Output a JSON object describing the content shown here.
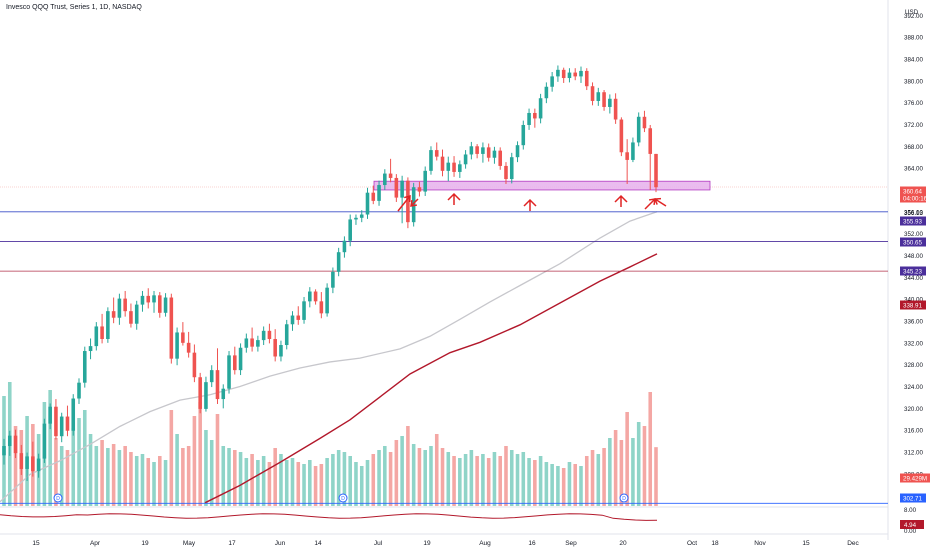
{
  "title": "Invesco QQQ Trust, Series 1, 1D, NASDAQ",
  "colors": {
    "up": "#26a69a",
    "down": "#ef5350",
    "vol_up": "#8fd4c8",
    "vol_down": "#f4a7a4",
    "ma_gray": "#c7c7cc",
    "ma_red": "#b2182b",
    "zone_fill": "#e6b0ec",
    "zone_stroke": "#b23bc2",
    "hline_blue": "#3b4ec7",
    "hline_purple": "#4b2f9b",
    "hline_maroon": "#b0304a",
    "arrow": "#e02424",
    "grid_divider": "#e0e3eb"
  },
  "chart_data": {
    "type": "candlestick",
    "title": "Invesco QQQ Trust, Series 1, 1D, NASDAQ",
    "currency": "USD",
    "y_range": [
      302,
      398
    ],
    "y_ticks": [
      "392.00",
      "388.00",
      "384.00",
      "380.00",
      "376.00",
      "372.00",
      "368.00",
      "364.00",
      "360.00",
      "356.00",
      "352.00",
      "348.00",
      "344.00",
      "340.00",
      "336.00",
      "332.00",
      "328.00",
      "324.00",
      "320.00",
      "316.00",
      "312.00",
      "308.00",
      "304.00",
      "396.00"
    ],
    "x_labels": [
      "15",
      "Apr",
      "19",
      "May",
      "17",
      "Jun",
      "14",
      "Jul",
      "19",
      "Aug",
      "16",
      "Sep",
      "20",
      "Oct",
      "18",
      "Nov",
      "15",
      "Dec"
    ],
    "price_badges": [
      {
        "value": "360.64",
        "sub": "04:00:16",
        "color": "#ef5350"
      },
      {
        "value": "356.13",
        "color": "none"
      },
      {
        "value": "355.93",
        "color": "#4b2f9b"
      },
      {
        "value": "350.65",
        "color": "#4b2f9b"
      },
      {
        "value": "345.23",
        "color": "#4b2f9b"
      },
      {
        "value": "338.91",
        "color": "#b2182b"
      },
      {
        "value": "29.429M",
        "color": "#ef5350"
      },
      {
        "value": "302.71",
        "color": "#2962ff"
      }
    ],
    "horizontal_levels": [
      356.1,
      350.65,
      345.23,
      302.71
    ],
    "support_zone": [
      360.1,
      361.7
    ],
    "candles": [
      [
        311.5,
        314.5,
        309.8,
        313.2
      ],
      [
        313.2,
        316.0,
        311.4,
        315.1
      ],
      [
        315.1,
        316.2,
        311.0,
        311.9
      ],
      [
        311.9,
        313.4,
        307.9,
        309.0
      ],
      [
        309.0,
        312.0,
        306.8,
        311.3
      ],
      [
        311.3,
        314.0,
        307.6,
        308.6
      ],
      [
        308.6,
        311.8,
        307.4,
        310.9
      ],
      [
        310.9,
        318.2,
        310.1,
        317.3
      ],
      [
        317.3,
        321.0,
        316.3,
        320.4
      ],
      [
        320.4,
        321.8,
        314.4,
        315.0
      ],
      [
        315.0,
        319.3,
        313.9,
        318.6
      ],
      [
        318.6,
        320.6,
        315.0,
        316.0
      ],
      [
        316.0,
        322.7,
        315.1,
        321.9
      ],
      [
        321.9,
        325.6,
        320.9,
        324.8
      ],
      [
        324.8,
        331.4,
        323.9,
        330.6
      ],
      [
        330.6,
        332.9,
        329.1,
        331.5
      ],
      [
        331.5,
        335.9,
        330.7,
        335.1
      ],
      [
        335.1,
        337.4,
        332.0,
        332.8
      ],
      [
        332.8,
        338.6,
        332.1,
        337.9
      ],
      [
        337.9,
        340.4,
        335.7,
        336.7
      ],
      [
        336.7,
        341.1,
        335.4,
        340.2
      ],
      [
        340.2,
        341.6,
        336.9,
        337.9
      ],
      [
        337.9,
        339.3,
        334.9,
        335.6
      ],
      [
        335.6,
        339.8,
        334.5,
        339.1
      ],
      [
        339.1,
        341.6,
        337.8,
        340.7
      ],
      [
        340.7,
        342.1,
        338.4,
        339.5
      ],
      [
        339.5,
        341.6,
        337.6,
        340.8
      ],
      [
        340.8,
        341.4,
        336.7,
        337.6
      ],
      [
        337.6,
        341.2,
        336.9,
        340.4
      ],
      [
        340.4,
        341.1,
        328.3,
        329.2
      ],
      [
        329.2,
        334.9,
        328.0,
        334.0
      ],
      [
        334.0,
        335.9,
        331.6,
        332.1
      ],
      [
        332.1,
        334.1,
        329.4,
        330.3
      ],
      [
        330.3,
        331.8,
        324.9,
        325.8
      ],
      [
        325.8,
        326.6,
        319.2,
        320.0
      ],
      [
        320.0,
        325.9,
        319.5,
        324.9
      ],
      [
        324.9,
        328.0,
        324.0,
        327.1
      ],
      [
        327.1,
        331.1,
        320.9,
        321.8
      ],
      [
        321.8,
        324.5,
        320.1,
        323.7
      ],
      [
        323.7,
        330.6,
        322.8,
        329.8
      ],
      [
        329.8,
        331.4,
        326.3,
        327.1
      ],
      [
        327.1,
        332.0,
        326.2,
        331.2
      ],
      [
        331.2,
        333.8,
        330.3,
        332.9
      ],
      [
        332.9,
        334.9,
        330.5,
        331.4
      ],
      [
        331.4,
        333.4,
        330.5,
        332.6
      ],
      [
        332.6,
        335.1,
        331.7,
        334.3
      ],
      [
        334.3,
        335.6,
        332.0,
        332.8
      ],
      [
        332.8,
        334.6,
        328.7,
        329.6
      ],
      [
        329.6,
        332.5,
        328.7,
        331.7
      ],
      [
        331.7,
        336.3,
        330.9,
        335.5
      ],
      [
        335.5,
        337.9,
        334.3,
        337.1
      ],
      [
        337.1,
        338.8,
        335.4,
        336.3
      ],
      [
        336.3,
        340.5,
        335.6,
        339.7
      ],
      [
        339.7,
        342.3,
        338.6,
        341.5
      ],
      [
        341.5,
        341.9,
        339.1,
        339.7
      ],
      [
        339.7,
        341.4,
        336.6,
        337.5
      ],
      [
        337.5,
        343.0,
        336.9,
        342.2
      ],
      [
        342.2,
        345.9,
        341.2,
        345.1
      ],
      [
        345.1,
        349.5,
        344.3,
        348.7
      ],
      [
        348.7,
        351.6,
        347.7,
        350.8
      ],
      [
        350.8,
        355.6,
        349.8,
        354.7
      ],
      [
        354.7,
        355.6,
        353.7,
        355.0
      ],
      [
        355.0,
        356.4,
        354.2,
        355.6
      ],
      [
        355.6,
        360.5,
        354.8,
        359.6
      ],
      [
        359.6,
        360.9,
        357.5,
        358.1
      ],
      [
        358.1,
        361.8,
        357.2,
        361.0
      ],
      [
        361.0,
        363.9,
        360.1,
        363.1
      ],
      [
        363.1,
        365.8,
        361.5,
        362.3
      ],
      [
        362.3,
        363.0,
        357.9,
        358.7
      ],
      [
        358.7,
        362.7,
        354.0,
        361.8
      ],
      [
        361.8,
        362.4,
        353.1,
        354.2
      ],
      [
        354.2,
        361.4,
        353.4,
        360.6
      ],
      [
        360.6,
        361.6,
        358.9,
        359.8
      ],
      [
        359.8,
        364.4,
        359.0,
        363.6
      ],
      [
        363.6,
        368.1,
        362.9,
        367.4
      ],
      [
        367.4,
        368.8,
        365.5,
        366.2
      ],
      [
        366.2,
        367.5,
        362.6,
        363.6
      ],
      [
        363.6,
        366.2,
        361.7,
        365.1
      ],
      [
        365.1,
        366.3,
        362.5,
        363.4
      ],
      [
        363.4,
        365.5,
        362.3,
        364.8
      ],
      [
        364.8,
        367.4,
        364.0,
        366.6
      ],
      [
        366.6,
        368.9,
        365.7,
        368.1
      ],
      [
        368.1,
        368.5,
        365.9,
        366.7
      ],
      [
        366.7,
        368.8,
        365.1,
        367.9
      ],
      [
        367.9,
        368.6,
        365.3,
        366.0
      ],
      [
        366.0,
        368.0,
        364.9,
        367.3
      ],
      [
        367.3,
        367.9,
        363.8,
        364.5
      ],
      [
        364.5,
        365.2,
        361.2,
        362.1
      ],
      [
        362.1,
        366.9,
        361.3,
        366.1
      ],
      [
        366.1,
        369.0,
        365.2,
        368.3
      ],
      [
        368.3,
        372.8,
        367.5,
        372.0
      ],
      [
        372.0,
        375.0,
        371.1,
        374.2
      ],
      [
        374.2,
        375.0,
        371.5,
        373.2
      ],
      [
        373.2,
        377.7,
        372.3,
        376.9
      ],
      [
        376.9,
        379.8,
        376.0,
        379.0
      ],
      [
        379.0,
        381.7,
        378.1,
        380.9
      ],
      [
        380.9,
        382.9,
        379.9,
        382.1
      ],
      [
        382.1,
        382.5,
        379.7,
        380.6
      ],
      [
        380.6,
        382.4,
        379.8,
        381.6
      ],
      [
        381.6,
        382.4,
        380.2,
        380.9
      ],
      [
        380.9,
        382.7,
        379.7,
        381.9
      ],
      [
        381.9,
        382.4,
        378.4,
        379.1
      ],
      [
        379.1,
        379.8,
        375.6,
        376.4
      ],
      [
        376.4,
        378.8,
        375.5,
        378.0
      ],
      [
        378.0,
        378.4,
        374.6,
        375.3
      ],
      [
        375.3,
        377.6,
        374.1,
        376.8
      ],
      [
        376.8,
        377.8,
        372.2,
        373.0
      ],
      [
        373.0,
        373.4,
        366.3,
        367.0
      ],
      [
        367.0,
        369.4,
        361.2,
        365.6
      ],
      [
        365.6,
        369.7,
        365.2,
        368.8
      ],
      [
        368.8,
        374.3,
        368.1,
        373.5
      ],
      [
        373.5,
        374.6,
        370.7,
        371.4
      ],
      [
        371.4,
        372.0,
        360.1,
        366.7
      ],
      [
        366.7,
        366.7,
        359.7,
        360.6
      ]
    ],
    "volume_millions": [
      55,
      62,
      40,
      38,
      45,
      41,
      36,
      52,
      58,
      34,
      30,
      28,
      39,
      44,
      48,
      36,
      30,
      33,
      29,
      31,
      28,
      30,
      27,
      25,
      26,
      24,
      22,
      25,
      23,
      48,
      36,
      29,
      30,
      45,
      52,
      38,
      33,
      46,
      30,
      29,
      28,
      27,
      24,
      26,
      23,
      25,
      22,
      29,
      26,
      23,
      24,
      22,
      21,
      23,
      20,
      21,
      24,
      26,
      28,
      27,
      25,
      22,
      20,
      23,
      26,
      28,
      30,
      27,
      33,
      35,
      40,
      31,
      29,
      28,
      30,
      36,
      29,
      27,
      25,
      24,
      26,
      28,
      25,
      26,
      24,
      27,
      25,
      30,
      28,
      26,
      27,
      24,
      23,
      25,
      22,
      21,
      20,
      19,
      22,
      21,
      20,
      25,
      28,
      26,
      29,
      34,
      38,
      33,
      47,
      34,
      42,
      40,
      57,
      29.429
    ]
  },
  "indicator": {
    "label_top": "8.00",
    "label_bottom": "0.00",
    "value_badge": "4.94"
  }
}
